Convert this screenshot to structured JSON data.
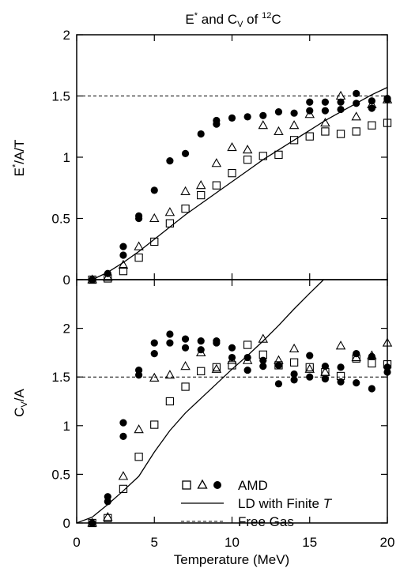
{
  "chart_data": {
    "type": "scatter",
    "title": {
      "E": "E",
      "E_sup": "*",
      "and": " and C",
      "C_sub": "V",
      "of": " of ",
      "iso_sup": "12",
      "iso": "C"
    },
    "xlabel": "Temperature (MeV)",
    "xlim": [
      0,
      20
    ],
    "x_ticks": [
      "0",
      "5",
      "10",
      "15",
      "20"
    ],
    "legend": {
      "amd_label": "AMD",
      "ld_label": "LD with Finite ",
      "ld_label_T": "T",
      "free_label": "Free  Gas",
      "position": "bottom-right of lower panel"
    },
    "panels": [
      {
        "id": "top",
        "ylabel": {
          "pre": "E",
          "sup": "*",
          "post": "/A/T"
        },
        "ylim": [
          0,
          2
        ],
        "y_ticks": [
          "0",
          "0.5",
          "1",
          "1.5",
          "2"
        ],
        "free_gas": 1.5,
        "series": [
          {
            "marker": "filled-circle",
            "points": [
              [
                1,
                0
              ],
              [
                2,
                0.05
              ],
              [
                3,
                0.27
              ],
              [
                3,
                0.2
              ],
              [
                4,
                0.52
              ],
              [
                4,
                0.5
              ],
              [
                5,
                0.73
              ],
              [
                6,
                0.97
              ],
              [
                7,
                1.03
              ],
              [
                8,
                1.19
              ],
              [
                9,
                1.3
              ],
              [
                9,
                1.27
              ],
              [
                10,
                1.32
              ],
              [
                11,
                1.33
              ],
              [
                12,
                1.34
              ],
              [
                13,
                1.37
              ],
              [
                14,
                1.36
              ],
              [
                15,
                1.38
              ],
              [
                15,
                1.45
              ],
              [
                16,
                1.45
              ],
              [
                16,
                1.38
              ],
              [
                17,
                1.45
              ],
              [
                17,
                1.39
              ],
              [
                18,
                1.52
              ],
              [
                18,
                1.44
              ],
              [
                19,
                1.46
              ],
              [
                19,
                1.4
              ],
              [
                20,
                1.47
              ],
              [
                20,
                1.48
              ]
            ]
          },
          {
            "marker": "open-triangle",
            "points": [
              [
                1,
                0
              ],
              [
                2,
                0.02
              ],
              [
                3,
                0.12
              ],
              [
                4,
                0.27
              ],
              [
                5,
                0.5
              ],
              [
                6,
                0.55
              ],
              [
                7,
                0.72
              ],
              [
                8,
                0.77
              ],
              [
                9,
                0.95
              ],
              [
                10,
                1.08
              ],
              [
                11,
                1.06
              ],
              [
                12,
                1.26
              ],
              [
                13,
                1.21
              ],
              [
                14,
                1.26
              ],
              [
                15,
                1.35
              ],
              [
                16,
                1.28
              ],
              [
                17,
                1.5
              ],
              [
                18,
                1.33
              ],
              [
                19,
                1.43
              ],
              [
                20,
                1.47
              ]
            ]
          },
          {
            "marker": "open-square",
            "points": [
              [
                1,
                0
              ],
              [
                2,
                0.01
              ],
              [
                3,
                0.07
              ],
              [
                4,
                0.18
              ],
              [
                5,
                0.31
              ],
              [
                6,
                0.46
              ],
              [
                7,
                0.58
              ],
              [
                8,
                0.69
              ],
              [
                9,
                0.77
              ],
              [
                10,
                0.87
              ],
              [
                11,
                0.98
              ],
              [
                12,
                1.01
              ],
              [
                13,
                1.02
              ],
              [
                14,
                1.14
              ],
              [
                15,
                1.17
              ],
              [
                16,
                1.21
              ],
              [
                17,
                1.19
              ],
              [
                18,
                1.21
              ],
              [
                19,
                1.26
              ],
              [
                20,
                1.28
              ]
            ]
          }
        ],
        "ld_curve": [
          [
            1,
            0
          ],
          [
            2,
            0.06
          ],
          [
            3,
            0.14
          ],
          [
            4,
            0.23
          ],
          [
            5,
            0.33
          ],
          [
            6,
            0.43
          ],
          [
            7,
            0.53
          ],
          [
            8,
            0.62
          ],
          [
            9,
            0.71
          ],
          [
            10,
            0.8
          ],
          [
            11,
            0.89
          ],
          [
            12,
            0.98
          ],
          [
            13,
            1.06
          ],
          [
            14,
            1.14
          ],
          [
            15,
            1.22
          ],
          [
            16,
            1.3
          ],
          [
            17,
            1.37
          ],
          [
            18,
            1.44
          ],
          [
            19,
            1.51
          ],
          [
            20,
            1.57
          ]
        ]
      },
      {
        "id": "bottom",
        "ylabel": {
          "pre": "C",
          "sub": "V",
          "post": "/A"
        },
        "ylim": [
          0,
          2.5
        ],
        "y_ticks": [
          "0",
          "0.5",
          "1",
          "1.5",
          "2"
        ],
        "free_gas": 1.5,
        "series": [
          {
            "marker": "filled-circle",
            "points": [
              [
                1,
                0
              ],
              [
                2,
                0.22
              ],
              [
                2,
                0.27
              ],
              [
                3,
                0.89
              ],
              [
                3,
                1.03
              ],
              [
                4,
                1.57
              ],
              [
                4,
                1.52
              ],
              [
                5,
                1.85
              ],
              [
                5,
                1.74
              ],
              [
                6,
                1.94
              ],
              [
                6,
                1.85
              ],
              [
                7,
                1.89
              ],
              [
                7,
                1.8
              ],
              [
                8,
                1.87
              ],
              [
                8,
                1.78
              ],
              [
                9,
                1.85
              ],
              [
                9,
                1.87
              ],
              [
                10,
                1.8
              ],
              [
                10,
                1.7
              ],
              [
                11,
                1.7
              ],
              [
                11,
                1.57
              ],
              [
                12,
                1.67
              ],
              [
                12,
                1.61
              ],
              [
                13,
                1.43
              ],
              [
                13,
                1.62
              ],
              [
                14,
                1.47
              ],
              [
                14,
                1.53
              ],
              [
                15,
                1.5
              ],
              [
                15,
                1.72
              ],
              [
                16,
                1.48
              ],
              [
                16,
                1.61
              ],
              [
                17,
                1.45
              ],
              [
                17,
                1.6
              ],
              [
                18,
                1.44
              ],
              [
                18,
                1.74
              ],
              [
                19,
                1.38
              ],
              [
                19,
                1.71
              ],
              [
                20,
                1.55
              ],
              [
                20,
                1.6
              ]
            ]
          },
          {
            "marker": "open-triangle",
            "points": [
              [
                1,
                0
              ],
              [
                2,
                0.06
              ],
              [
                3,
                0.48
              ],
              [
                4,
                0.96
              ],
              [
                5,
                1.49
              ],
              [
                6,
                1.52
              ],
              [
                7,
                1.61
              ],
              [
                8,
                1.75
              ],
              [
                9,
                1.58
              ],
              [
                10,
                1.67
              ],
              [
                11,
                1.67
              ],
              [
                12,
                1.89
              ],
              [
                13,
                1.67
              ],
              [
                14,
                1.79
              ],
              [
                15,
                1.58
              ],
              [
                16,
                1.55
              ],
              [
                17,
                1.82
              ],
              [
                18,
                1.7
              ],
              [
                19,
                1.72
              ],
              [
                20,
                1.85
              ]
            ]
          },
          {
            "marker": "open-square",
            "points": [
              [
                1,
                0
              ],
              [
                2,
                0.05
              ],
              [
                3,
                0.35
              ],
              [
                4,
                0.68
              ],
              [
                5,
                1.01
              ],
              [
                6,
                1.25
              ],
              [
                7,
                1.4
              ],
              [
                8,
                1.56
              ],
              [
                9,
                1.6
              ],
              [
                10,
                1.62
              ],
              [
                11,
                1.83
              ],
              [
                12,
                1.73
              ],
              [
                13,
                1.62
              ],
              [
                14,
                1.65
              ],
              [
                15,
                1.6
              ],
              [
                16,
                1.55
              ],
              [
                17,
                1.51
              ],
              [
                18,
                1.69
              ],
              [
                19,
                1.64
              ],
              [
                20,
                1.63
              ]
            ]
          }
        ],
        "ld_curve": [
          [
            0,
            0
          ],
          [
            1,
            0.06
          ],
          [
            2,
            0.19
          ],
          [
            3,
            0.33
          ],
          [
            4,
            0.48
          ],
          [
            5,
            0.73
          ],
          [
            6,
            0.95
          ],
          [
            7,
            1.13
          ],
          [
            8,
            1.28
          ],
          [
            9,
            1.43
          ],
          [
            10,
            1.58
          ],
          [
            11,
            1.72
          ],
          [
            12,
            1.87
          ],
          [
            13,
            2.03
          ],
          [
            14,
            2.2
          ],
          [
            15,
            2.36
          ],
          [
            15.9,
            2.5
          ]
        ]
      }
    ]
  }
}
